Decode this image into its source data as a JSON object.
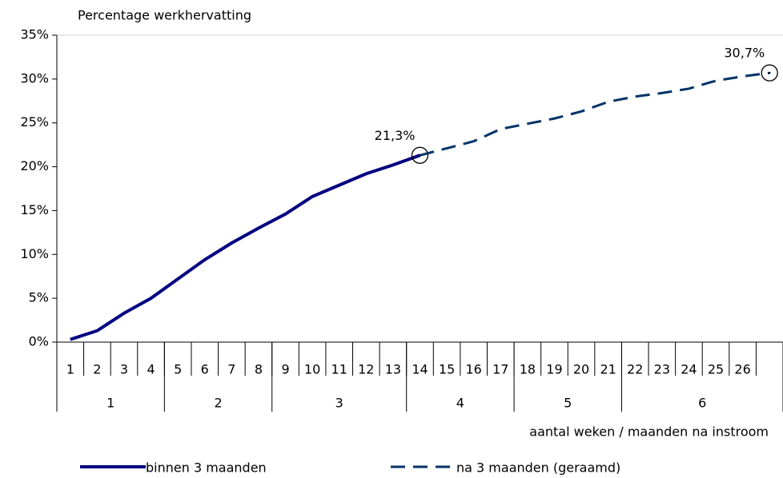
{
  "chart_data": {
    "type": "line",
    "title": "Percentage werkhervatting",
    "x_label": "aantal weken / maanden na instroom",
    "categories": [
      "1",
      "2",
      "3",
      "4",
      "5",
      "6",
      "7",
      "8",
      "9",
      "10",
      "11",
      "12",
      "13",
      "14",
      "15",
      "16",
      "17",
      "18",
      "19",
      "20",
      "21",
      "22",
      "23",
      "24",
      "25",
      "26",
      null
    ],
    "groups": [
      {
        "label": "1",
        "size": 4
      },
      {
        "label": "2",
        "size": 4
      },
      {
        "label": "3",
        "size": 5
      },
      {
        "label": "4",
        "size": 4
      },
      {
        "label": "5",
        "size": 4
      },
      {
        "label": "6",
        "size": 6
      }
    ],
    "series": [
      {
        "name": "binnen 3 maanden",
        "color": "#000080",
        "dash": false,
        "values": [
          0.3,
          1.3,
          3.3,
          5.0,
          7.2,
          9.4,
          11.3,
          13.0,
          14.6,
          16.6,
          17.9,
          19.2,
          20.2,
          21.3,
          null,
          null,
          null,
          null,
          null,
          null,
          null,
          null,
          null,
          null,
          null,
          null,
          null
        ],
        "value_labels": [
          null,
          null,
          null,
          null,
          null,
          null,
          null,
          null,
          null,
          null,
          null,
          null,
          null,
          "21,3%",
          null,
          null,
          null,
          null,
          null,
          null,
          null,
          null,
          null,
          null,
          null,
          null,
          null
        ]
      },
      {
        "name": "na 3 maanden (geraamd)",
        "color": "#003366",
        "dash": true,
        "values": [
          null,
          null,
          null,
          null,
          null,
          null,
          null,
          null,
          null,
          null,
          null,
          null,
          null,
          21.3,
          22.1,
          22.9,
          24.3,
          24.9,
          25.5,
          26.3,
          27.4,
          28.0,
          28.4,
          28.9,
          29.8,
          30.3,
          30.7
        ],
        "value_labels": [
          null,
          null,
          null,
          null,
          null,
          null,
          null,
          null,
          null,
          null,
          null,
          null,
          null,
          null,
          null,
          null,
          null,
          null,
          null,
          null,
          null,
          null,
          null,
          null,
          null,
          null,
          "30,7%"
        ]
      }
    ],
    "ylim": [
      0,
      35
    ],
    "yticks": [
      {
        "value": 0,
        "label": "0%"
      },
      {
        "value": 5,
        "label": "5%"
      },
      {
        "value": 10,
        "label": "10%"
      },
      {
        "value": 15,
        "label": "15%"
      },
      {
        "value": 20,
        "label": "20%"
      },
      {
        "value": 25,
        "label": "25%"
      },
      {
        "value": 30,
        "label": "30%"
      },
      {
        "value": 35,
        "label": "35%"
      }
    ],
    "grid": false
  }
}
